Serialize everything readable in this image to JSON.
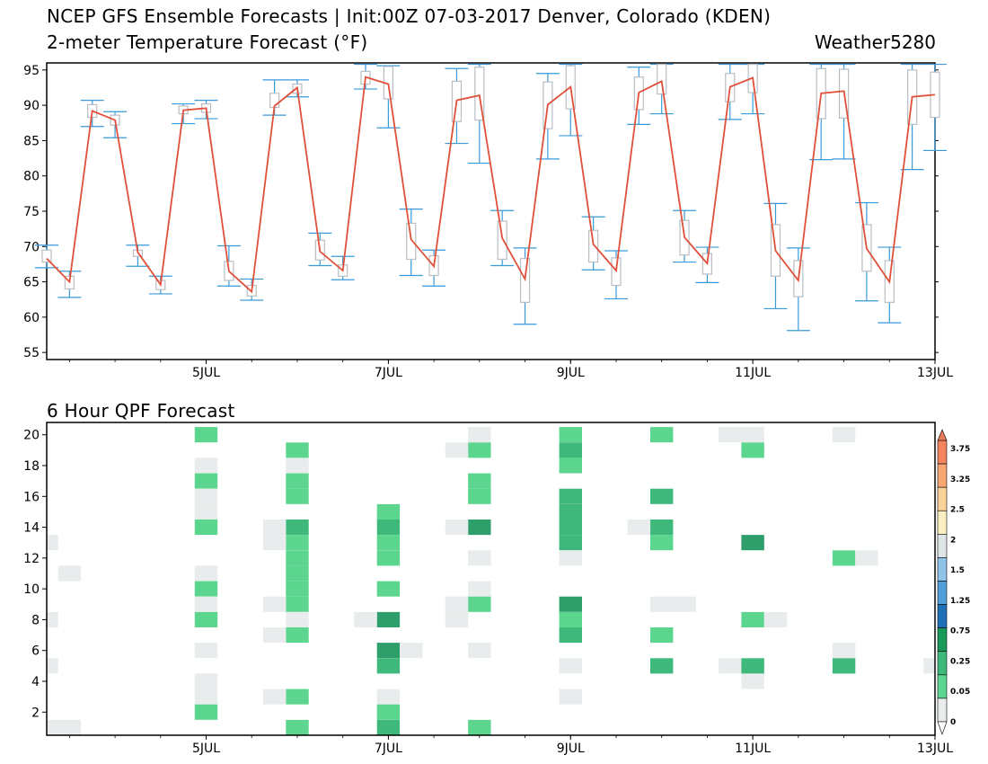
{
  "title_line1": "NCEP GFS Ensemble Forecasts | Init:00Z 07-03-2017 Denver, Colorado (KDEN)",
  "title_line2": "2-meter Temperature Forecast (°F)",
  "credit": "Weather5280",
  "qpf_title": "6 Hour QPF Forecast",
  "colors": {
    "mean_line": "#e0503a",
    "whisker": "#3a9ad9",
    "box": "#b8bec4",
    "qpf_very_light": "#e8ecec",
    "qpf_light": "#5cd68e",
    "qpf_medium": "#3fb87c",
    "qpf_heavy": "#2e9e6a"
  },
  "chart_data": [
    {
      "type": "box",
      "ylim": [
        54,
        96
      ],
      "yticks": [
        55,
        60,
        65,
        70,
        75,
        80,
        85,
        90,
        95
      ],
      "xticks": [
        "5JUL",
        "7JUL",
        "9JUL",
        "11JUL",
        "13JUL"
      ],
      "xlim_days": [
        3.25,
        13.0
      ],
      "x_days": [
        3.25,
        3.5,
        3.75,
        4.0,
        4.25,
        4.5,
        4.75,
        5.0,
        5.25,
        5.5,
        5.75,
        6.0,
        6.25,
        6.5,
        6.75,
        7.0,
        7.25,
        7.5,
        7.75,
        8.0,
        8.25,
        8.5,
        8.75,
        9.0,
        9.25,
        9.5,
        9.75,
        10.0,
        10.25,
        10.5,
        10.75,
        11.0,
        11.25,
        11.5,
        11.75,
        12.0,
        12.25,
        12.5,
        12.75,
        13.0
      ],
      "mean": [
        68.3,
        65.0,
        89.2,
        87.9,
        69.2,
        64.6,
        89.3,
        89.6,
        66.5,
        63.6,
        89.9,
        92.5,
        69.3,
        66.6,
        94.0,
        93.0,
        71.0,
        67.2,
        90.7,
        91.4,
        71.2,
        65.4,
        90.1,
        92.6,
        70.3,
        66.6,
        91.8,
        93.4,
        71.3,
        67.6,
        92.6,
        93.9,
        69.4,
        65.2,
        91.7,
        92.0,
        69.7,
        65.0,
        91.2,
        91.5
      ],
      "min": [
        67.0,
        62.8,
        87.0,
        85.4,
        67.2,
        63.3,
        87.4,
        88.1,
        64.4,
        62.4,
        88.6,
        91.2,
        67.3,
        65.3,
        92.3,
        86.8,
        65.9,
        64.4,
        84.6,
        81.8,
        67.3,
        59.0,
        82.4,
        85.7,
        66.7,
        62.6,
        87.3,
        88.8,
        67.8,
        64.9,
        88.0,
        88.8,
        61.2,
        58.1,
        82.3,
        82.4,
        62.3,
        59.2,
        80.9,
        83.6
      ],
      "max": [
        70.2,
        66.5,
        90.7,
        89.1,
        70.2,
        65.8,
        90.2,
        90.7,
        70.1,
        65.4,
        93.6,
        93.6,
        71.9,
        68.6,
        95.8,
        95.6,
        75.3,
        69.5,
        95.2,
        95.8,
        75.1,
        69.8,
        94.5,
        95.8,
        74.2,
        69.4,
        95.4,
        95.8,
        75.1,
        69.9,
        95.8,
        95.8,
        76.1,
        69.8,
        95.8,
        95.8,
        76.2,
        69.9,
        95.8,
        95.8
      ],
      "q1": [
        67.8,
        64.0,
        88.3,
        87.2,
        68.6,
        63.9,
        88.8,
        89.0,
        65.2,
        63.0,
        89.7,
        91.7,
        68.1,
        65.8,
        93.0,
        90.9,
        68.2,
        65.9,
        87.7,
        87.9,
        68.2,
        62.1,
        86.7,
        89.5,
        67.8,
        64.5,
        89.4,
        91.6,
        68.8,
        66.1,
        90.5,
        91.8,
        65.8,
        62.9,
        88.1,
        88.2,
        66.5,
        62.1,
        87.3,
        88.3
      ],
      "q3": [
        69.5,
        65.8,
        90.1,
        88.6,
        69.5,
        65.2,
        89.9,
        90.2,
        67.9,
        64.5,
        91.7,
        93.0,
        70.9,
        67.4,
        94.8,
        95.5,
        73.3,
        68.7,
        93.4,
        95.4,
        73.6,
        68.3,
        93.3,
        95.6,
        72.3,
        68.4,
        94.0,
        95.8,
        73.7,
        69.0,
        94.5,
        95.8,
        73.1,
        68.0,
        95.2,
        95.1,
        73.1,
        68.0,
        95.0,
        94.7
      ]
    },
    {
      "type": "heatmap",
      "title": "6 Hour QPF Forecast",
      "yticks": [
        2,
        4,
        6,
        8,
        10,
        12,
        14,
        16,
        18,
        20
      ],
      "xticks": [
        "5JUL",
        "7JUL",
        "9JUL",
        "11JUL",
        "13JUL"
      ],
      "colorbar_ticks": [
        "3.75",
        "3.25",
        "2.5",
        "2",
        "1.5",
        "1.25",
        "0.75",
        "0.25",
        "0.05",
        "0"
      ],
      "cells_note": "each cell = [x_day, member(1-20), intensity: 1=very light,2=light,3=medium,4=heavy]",
      "cells": [
        [
          5.0,
          20,
          2
        ],
        [
          5.0,
          18,
          1
        ],
        [
          5.0,
          17,
          2
        ],
        [
          5.0,
          16,
          1
        ],
        [
          5.0,
          15,
          1
        ],
        [
          5.0,
          14,
          2
        ],
        [
          5.0,
          11,
          1
        ],
        [
          5.0,
          10,
          2
        ],
        [
          5.0,
          9,
          1
        ],
        [
          5.0,
          8,
          2
        ],
        [
          5.0,
          6,
          1
        ],
        [
          5.0,
          4,
          1
        ],
        [
          5.0,
          3,
          1
        ],
        [
          5.0,
          2,
          2
        ],
        [
          3.25,
          13,
          1
        ],
        [
          3.25,
          8,
          1
        ],
        [
          3.25,
          5,
          1
        ],
        [
          3.25,
          1,
          1
        ],
        [
          3.5,
          11,
          1
        ],
        [
          3.5,
          1,
          1
        ],
        [
          6.0,
          19,
          2
        ],
        [
          6.0,
          18,
          1
        ],
        [
          6.0,
          17,
          2
        ],
        [
          6.0,
          16,
          2
        ],
        [
          6.0,
          14,
          3
        ],
        [
          6.0,
          13,
          2
        ],
        [
          6.0,
          12,
          2
        ],
        [
          6.0,
          11,
          2
        ],
        [
          6.0,
          10,
          2
        ],
        [
          6.0,
          9,
          2
        ],
        [
          6.0,
          8,
          1
        ],
        [
          6.0,
          7,
          2
        ],
        [
          6.0,
          3,
          2
        ],
        [
          6.0,
          1,
          2
        ],
        [
          5.75,
          14,
          1
        ],
        [
          5.75,
          13,
          1
        ],
        [
          5.75,
          9,
          1
        ],
        [
          5.75,
          7,
          1
        ],
        [
          5.75,
          3,
          1
        ],
        [
          7.0,
          15,
          2
        ],
        [
          7.0,
          14,
          3
        ],
        [
          7.0,
          13,
          2
        ],
        [
          7.0,
          12,
          2
        ],
        [
          7.0,
          10,
          2
        ],
        [
          7.0,
          8,
          4
        ],
        [
          7.0,
          6,
          4
        ],
        [
          7.0,
          5,
          3
        ],
        [
          7.0,
          3,
          1
        ],
        [
          7.0,
          2,
          2
        ],
        [
          7.0,
          1,
          3
        ],
        [
          6.75,
          8,
          1
        ],
        [
          7.25,
          6,
          1
        ],
        [
          8.0,
          20,
          1
        ],
        [
          8.0,
          19,
          2
        ],
        [
          8.0,
          17,
          2
        ],
        [
          8.0,
          16,
          2
        ],
        [
          8.0,
          14,
          4
        ],
        [
          8.0,
          12,
          1
        ],
        [
          8.0,
          10,
          1
        ],
        [
          8.0,
          9,
          2
        ],
        [
          8.0,
          6,
          1
        ],
        [
          8.0,
          1,
          2
        ],
        [
          7.75,
          19,
          1
        ],
        [
          7.75,
          14,
          1
        ],
        [
          7.75,
          9,
          1
        ],
        [
          7.75,
          8,
          1
        ],
        [
          9.0,
          20,
          2
        ],
        [
          9.0,
          19,
          3
        ],
        [
          9.0,
          18,
          2
        ],
        [
          9.0,
          16,
          3
        ],
        [
          9.0,
          15,
          3
        ],
        [
          9.0,
          14,
          3
        ],
        [
          9.0,
          13,
          3
        ],
        [
          9.0,
          12,
          1
        ],
        [
          9.0,
          9,
          4
        ],
        [
          9.0,
          8,
          2
        ],
        [
          9.0,
          7,
          3
        ],
        [
          9.0,
          5,
          1
        ],
        [
          9.0,
          3,
          1
        ],
        [
          10.0,
          20,
          2
        ],
        [
          10.0,
          16,
          3
        ],
        [
          10.0,
          14,
          3
        ],
        [
          10.0,
          13,
          2
        ],
        [
          10.0,
          9,
          1
        ],
        [
          10.0,
          7,
          2
        ],
        [
          10.0,
          5,
          3
        ],
        [
          9.75,
          14,
          1
        ],
        [
          10.25,
          9,
          1
        ],
        [
          10.75,
          20,
          1
        ],
        [
          10.75,
          5,
          1
        ],
        [
          11.0,
          20,
          1
        ],
        [
          11.0,
          19,
          2
        ],
        [
          11.0,
          13,
          4
        ],
        [
          11.0,
          8,
          2
        ],
        [
          11.0,
          5,
          3
        ],
        [
          11.0,
          4,
          1
        ],
        [
          11.25,
          8,
          1
        ],
        [
          12.0,
          20,
          1
        ],
        [
          12.0,
          12,
          2
        ],
        [
          12.0,
          6,
          1
        ],
        [
          12.0,
          5,
          3
        ],
        [
          12.25,
          12,
          1
        ],
        [
          13.0,
          5,
          1
        ]
      ]
    }
  ]
}
